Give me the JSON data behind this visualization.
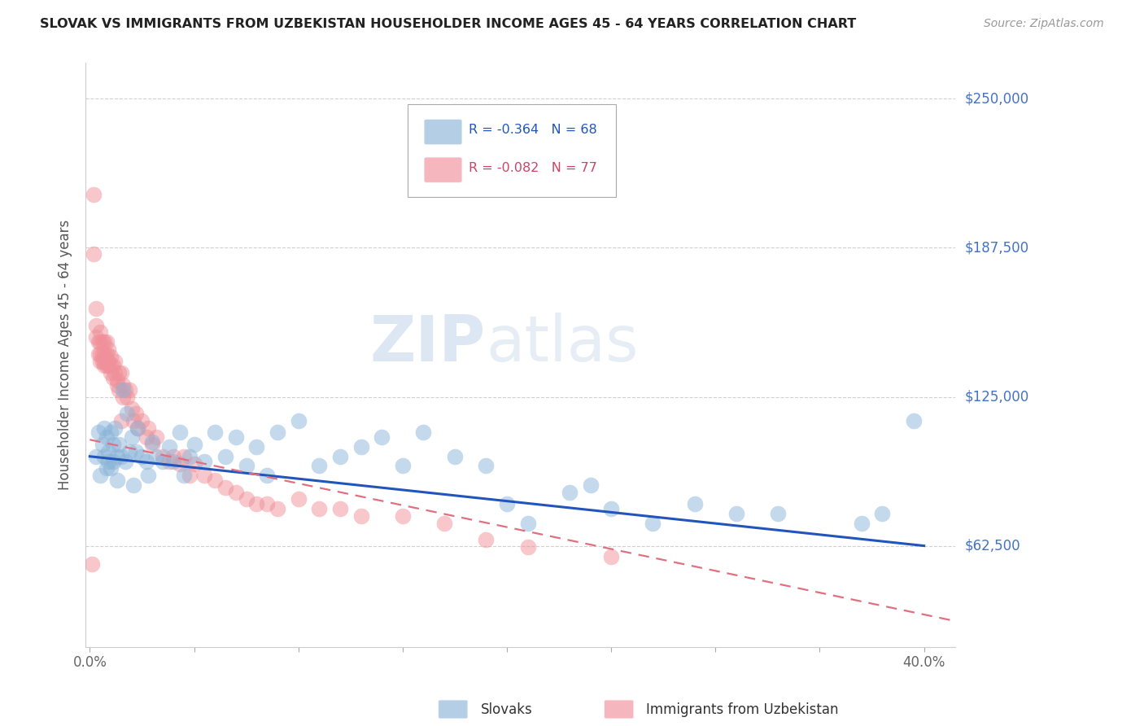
{
  "title": "SLOVAK VS IMMIGRANTS FROM UZBEKISTAN HOUSEHOLDER INCOME AGES 45 - 64 YEARS CORRELATION CHART",
  "source": "Source: ZipAtlas.com",
  "ylabel": "Householder Income Ages 45 - 64 years",
  "watermark_zip": "ZIP",
  "watermark_atlas": "atlas",
  "ytick_labels": [
    "$62,500",
    "$125,000",
    "$187,500",
    "$250,000"
  ],
  "ytick_values": [
    62500,
    125000,
    187500,
    250000
  ],
  "ylim": [
    20000,
    265000
  ],
  "xlim": [
    -0.002,
    0.415
  ],
  "xtick_values": [
    0.0,
    0.05,
    0.1,
    0.15,
    0.2,
    0.25,
    0.3,
    0.35,
    0.4
  ],
  "xtick_labels": [
    "0.0%",
    "",
    "",
    "",
    "",
    "",
    "",
    "",
    "40.0%"
  ],
  "blue_color": "#8ab4d8",
  "pink_color": "#f0909a",
  "blue_line_color": "#2255bb",
  "pink_line_color": "#e07080",
  "grid_color": "#d0d0d0",
  "ylabel_color": "#555555",
  "ytick_color": "#4472c4",
  "title_color": "#222222",
  "slovaks_x": [
    0.003,
    0.004,
    0.005,
    0.006,
    0.007,
    0.007,
    0.008,
    0.008,
    0.009,
    0.009,
    0.01,
    0.01,
    0.011,
    0.011,
    0.012,
    0.013,
    0.013,
    0.014,
    0.015,
    0.016,
    0.017,
    0.018,
    0.019,
    0.02,
    0.021,
    0.022,
    0.023,
    0.025,
    0.027,
    0.028,
    0.03,
    0.032,
    0.035,
    0.038,
    0.04,
    0.043,
    0.045,
    0.048,
    0.05,
    0.055,
    0.06,
    0.065,
    0.07,
    0.075,
    0.08,
    0.085,
    0.09,
    0.1,
    0.11,
    0.12,
    0.13,
    0.14,
    0.15,
    0.16,
    0.175,
    0.19,
    0.21,
    0.23,
    0.25,
    0.27,
    0.29,
    0.31,
    0.33,
    0.37,
    0.38,
    0.395,
    0.2,
    0.24
  ],
  "slovaks_y": [
    100000,
    110000,
    92000,
    105000,
    100000,
    112000,
    95000,
    108000,
    102000,
    98000,
    110000,
    95000,
    105000,
    98000,
    112000,
    100000,
    90000,
    105000,
    100000,
    128000,
    98000,
    118000,
    102000,
    108000,
    88000,
    102000,
    112000,
    100000,
    98000,
    92000,
    106000,
    100000,
    98000,
    104000,
    98000,
    110000,
    92000,
    100000,
    105000,
    98000,
    110000,
    100000,
    108000,
    96000,
    104000,
    92000,
    110000,
    115000,
    96000,
    100000,
    104000,
    108000,
    96000,
    110000,
    100000,
    96000,
    72000,
    85000,
    78000,
    72000,
    80000,
    76000,
    76000,
    72000,
    76000,
    115000,
    80000,
    88000
  ],
  "uzbek_x": [
    0.001,
    0.002,
    0.002,
    0.003,
    0.003,
    0.003,
    0.004,
    0.004,
    0.005,
    0.005,
    0.005,
    0.005,
    0.006,
    0.006,
    0.006,
    0.007,
    0.007,
    0.007,
    0.007,
    0.008,
    0.008,
    0.008,
    0.008,
    0.009,
    0.009,
    0.009,
    0.01,
    0.01,
    0.01,
    0.011,
    0.011,
    0.012,
    0.012,
    0.013,
    0.013,
    0.014,
    0.014,
    0.015,
    0.015,
    0.016,
    0.016,
    0.017,
    0.018,
    0.019,
    0.02,
    0.021,
    0.022,
    0.023,
    0.025,
    0.027,
    0.028,
    0.03,
    0.032,
    0.035,
    0.038,
    0.04,
    0.043,
    0.045,
    0.048,
    0.05,
    0.055,
    0.06,
    0.065,
    0.07,
    0.075,
    0.08,
    0.085,
    0.09,
    0.1,
    0.11,
    0.12,
    0.13,
    0.15,
    0.17,
    0.19,
    0.21,
    0.25
  ],
  "uzbek_y": [
    55000,
    210000,
    185000,
    162000,
    155000,
    150000,
    148000,
    143000,
    152000,
    148000,
    143000,
    140000,
    148000,
    143000,
    140000,
    148000,
    143000,
    140000,
    138000,
    148000,
    143000,
    140000,
    138000,
    145000,
    140000,
    138000,
    142000,
    138000,
    135000,
    138000,
    133000,
    135000,
    140000,
    132000,
    130000,
    135000,
    128000,
    135000,
    115000,
    130000,
    125000,
    128000,
    125000,
    128000,
    120000,
    115000,
    118000,
    112000,
    115000,
    108000,
    112000,
    105000,
    108000,
    100000,
    98000,
    100000,
    97000,
    100000,
    92000,
    97000,
    92000,
    90000,
    87000,
    85000,
    82000,
    80000,
    80000,
    78000,
    82000,
    78000,
    78000,
    75000,
    75000,
    72000,
    65000,
    62000,
    58000
  ]
}
